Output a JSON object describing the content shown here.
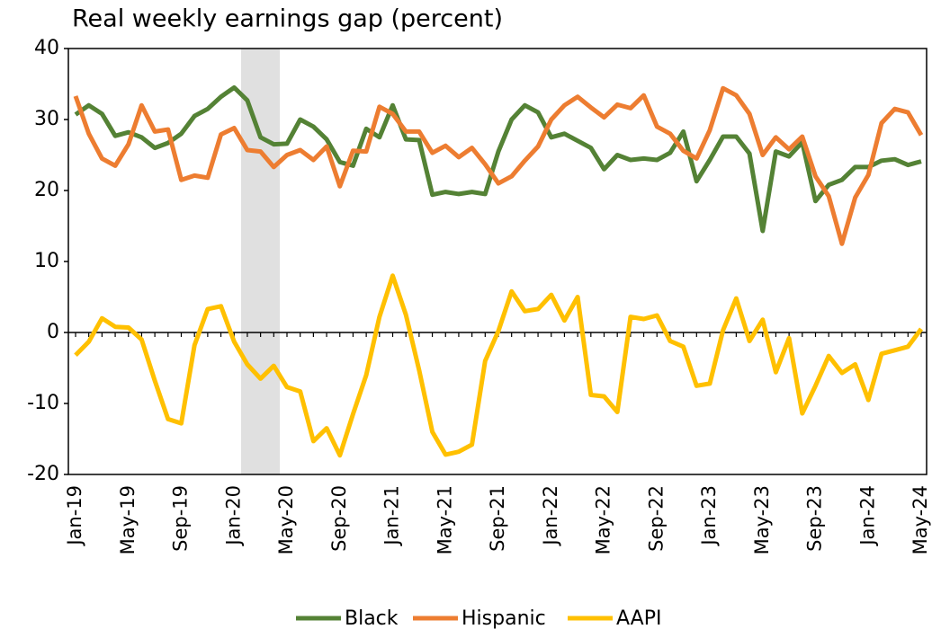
{
  "chart_data": {
    "type": "line",
    "title": "Real weekly earnings gap (percent)",
    "categories": [
      "Jan-19",
      null,
      null,
      null,
      "May-19",
      null,
      null,
      null,
      "Sep-19",
      null,
      null,
      null,
      "Jan-20",
      null,
      null,
      null,
      "May-20",
      null,
      null,
      null,
      "Sep-20",
      null,
      null,
      null,
      "Jan-21",
      null,
      null,
      null,
      "May-21",
      null,
      null,
      null,
      "Sep-21",
      null,
      null,
      null,
      "Jan-22",
      null,
      null,
      null,
      "May-22",
      null,
      null,
      null,
      "Sep-22",
      null,
      null,
      null,
      "Jan-23",
      null,
      null,
      null,
      "May-23",
      null,
      null,
      null,
      "Sep-23",
      null,
      null,
      null,
      "Jan-24",
      null,
      null,
      null,
      "May-24"
    ],
    "series": [
      {
        "name": "Black",
        "color": "#548235",
        "values": [
          30.7,
          32,
          30.8,
          27.7,
          28.2,
          27.5,
          26,
          26.7,
          28,
          30.5,
          31.5,
          33.2,
          34.5,
          32.7,
          27.5,
          26.5,
          26.6,
          30,
          29,
          27.2,
          24,
          23.5,
          28.7,
          27.5,
          32,
          27.2,
          27.1,
          19.4,
          19.8,
          19.5,
          19.8,
          19.5,
          25.5,
          30,
          32,
          31,
          27.5,
          28,
          27,
          26,
          23,
          25,
          24.3,
          24.5,
          24.3,
          25.3,
          28.3,
          21.3,
          24.3,
          27.6,
          27.6,
          25.2,
          14.3,
          25.5,
          24.8,
          26.8,
          18.5,
          20.8,
          21.5,
          23.3,
          23.3,
          24.2,
          24.4,
          23.6,
          24.1
        ]
      },
      {
        "name": "Hispanic",
        "color": "#ed7d31",
        "values": [
          33.3,
          28,
          24.5,
          23.5,
          26.5,
          32,
          28.3,
          28.6,
          21.5,
          22.1,
          21.8,
          27.9,
          28.8,
          25.7,
          25.5,
          23.3,
          25,
          25.7,
          24.3,
          26.2,
          20.6,
          25.6,
          25.5,
          31.8,
          30.8,
          28.3,
          28.3,
          25.3,
          26.3,
          24.7,
          26,
          23.7,
          21,
          22,
          24.2,
          26.2,
          30,
          32,
          33.2,
          31.7,
          30.3,
          32.1,
          31.6,
          33.4,
          29,
          28,
          25.6,
          24.5,
          28.5,
          34.4,
          33.4,
          30.8,
          25,
          27.5,
          25.8,
          27.6,
          22,
          19.2,
          12.5,
          19,
          22.2,
          29.5,
          31.5,
          31,
          27.8
        ]
      },
      {
        "name": "AAPI",
        "color": "#ffc000",
        "values": [
          -3.2,
          -1.3,
          2,
          0.8,
          0.7,
          -1,
          -6.8,
          -12.2,
          -12.8,
          -1.8,
          3.3,
          3.7,
          -1.3,
          -4.5,
          -6.5,
          -4.7,
          -7.7,
          -8.3,
          -15.3,
          -13.5,
          -17.3,
          -11.5,
          -6,
          2.2,
          8,
          2.5,
          -5.3,
          -14,
          -17.2,
          -16.8,
          -15.8,
          -4,
          0.2,
          5.8,
          3,
          3.3,
          5.3,
          1.7,
          5,
          -8.8,
          -9,
          -11.2,
          2.2,
          1.9,
          2.4,
          -1.2,
          -2,
          -7.5,
          -7.2,
          0.3,
          4.8,
          -1.2,
          1.8,
          -5.6,
          -0.8,
          -11.4,
          -7.5,
          -3.3,
          -5.7,
          -4.5,
          -9.5,
          -3,
          -2.5,
          -2,
          0.5
        ]
      }
    ],
    "ylim": [
      -20,
      40
    ],
    "yticks": [
      -20,
      -10,
      0,
      10,
      20,
      30,
      40
    ]
  }
}
